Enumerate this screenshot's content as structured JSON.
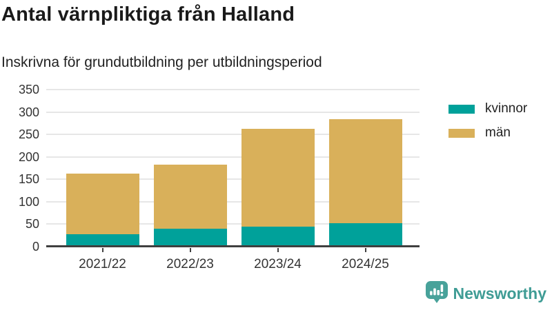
{
  "header": {
    "title": "Antal värnpliktiga från Halland",
    "subtitle": "Inskrivna för grundutbildning per utbildningsperiod"
  },
  "chart_data": {
    "type": "bar",
    "stacked": true,
    "title": "Antal värnpliktiga från Halland",
    "subtitle": "Inskrivna för grundutbildning per utbildningsperiod",
    "categories": [
      "2021/22",
      "2022/23",
      "2023/24",
      "2024/25"
    ],
    "series": [
      {
        "name": "kvinnor",
        "color": "#00a19a",
        "values": [
          27,
          39,
          44,
          51
        ]
      },
      {
        "name": "män",
        "color": "#d9b05a",
        "values": [
          136,
          144,
          218,
          233
        ]
      }
    ],
    "stack_totals": [
      163,
      183,
      262,
      284
    ],
    "xlabel": "",
    "ylabel": "",
    "ylim": [
      0,
      350
    ],
    "ytick_step": 50,
    "ytick_labels": [
      "0",
      "50",
      "100",
      "150",
      "200",
      "250",
      "300",
      "350"
    ],
    "grid": "horizontal",
    "legend_position": "right-outside"
  },
  "colors": {
    "grid": "#e6e6e6",
    "axis": "#3f3f3f",
    "tick_text": "#333333",
    "title_text": "#1a1a1a",
    "brand": "#3f9c95"
  },
  "footer": {
    "brand_name": "Newsworthy",
    "logo_icon": "newsworthy-bar-chart-speech-bubble-icon"
  }
}
